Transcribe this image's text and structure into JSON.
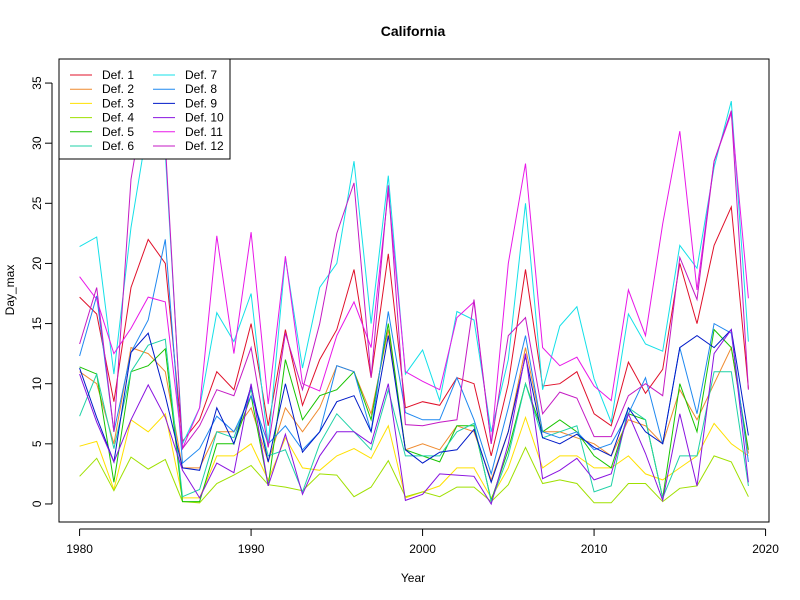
{
  "chart_data": {
    "type": "line",
    "title": "California",
    "xlabel": "Year",
    "ylabel": "Day_max",
    "xlim": [
      1978.8,
      2020.2
    ],
    "ylim": [
      -1.5,
      37
    ],
    "x_ticks": [
      1980,
      1990,
      2000,
      2010,
      2020
    ],
    "y_ticks": [
      0,
      5,
      10,
      15,
      20,
      25,
      30,
      35
    ],
    "legend_position": "top-left",
    "legend_columns": 2,
    "x": [
      1980,
      1981,
      1982,
      1983,
      1984,
      1985,
      1986,
      1987,
      1988,
      1989,
      1990,
      1991,
      1992,
      1993,
      1994,
      1995,
      1996,
      1997,
      1998,
      1999,
      2000,
      2001,
      2002,
      2003,
      2004,
      2005,
      2006,
      2007,
      2008,
      2009,
      2010,
      2011,
      2012,
      2013,
      2014,
      2015,
      2016,
      2017,
      2018,
      2019
    ],
    "series": [
      {
        "name": "Def. 1",
        "color": "#e0102a",
        "values": [
          17.2,
          15.8,
          8.5,
          18,
          22,
          20,
          5.2,
          7,
          11,
          9.5,
          15,
          6.5,
          14.5,
          8.2,
          12,
          14.5,
          19.5,
          10.5,
          20.8,
          8,
          8.5,
          8.2,
          10.5,
          10,
          4,
          10,
          19.5,
          9.8,
          10,
          11,
          7.5,
          6.5,
          11.8,
          9.2,
          11.2,
          20,
          15,
          21.5,
          24.7,
          9.6
        ]
      },
      {
        "name": "Def. 2",
        "color": "#ef8a2e",
        "values": [
          11,
          10,
          5,
          13,
          12.5,
          11,
          3,
          3,
          6,
          6,
          8,
          3.5,
          8,
          6,
          8,
          11.5,
          11,
          7.5,
          14.5,
          4.5,
          5,
          4.5,
          6.5,
          6,
          2,
          6,
          13,
          6,
          6,
          5.5,
          5,
          4,
          7,
          6.5,
          5,
          9.5,
          7,
          10,
          13,
          4.2
        ]
      },
      {
        "name": "Def. 3",
        "color": "#ffe000",
        "values": [
          4.8,
          5.2,
          1.2,
          7,
          6,
          7.5,
          0.5,
          0.5,
          4,
          4,
          5,
          2,
          5.5,
          3,
          2.8,
          4,
          4.6,
          3.8,
          6.5,
          0.5,
          1,
          1.5,
          3,
          3,
          0.5,
          3,
          7.2,
          3,
          4,
          4,
          3,
          3,
          4,
          2.5,
          2,
          3,
          4,
          6.7,
          5,
          4
        ]
      },
      {
        "name": "Def. 4",
        "color": "#9fe000",
        "values": [
          2.3,
          3.8,
          1.1,
          3.9,
          2.9,
          3.7,
          0.2,
          0.1,
          1.7,
          2.4,
          3.2,
          1.6,
          1.4,
          1.1,
          2.5,
          2.4,
          0.6,
          1.4,
          3.6,
          0.6,
          1,
          0.6,
          1.4,
          1.4,
          0.2,
          1.6,
          4.7,
          1.7,
          2,
          1.7,
          0.1,
          0.1,
          1.7,
          1.7,
          0.2,
          1.3,
          1.5,
          4,
          3.5,
          0.6
        ]
      },
      {
        "name": "Def. 5",
        "color": "#17c400",
        "values": [
          11.4,
          10.8,
          1.8,
          11,
          11.5,
          12.9,
          0.2,
          0.2,
          5,
          5,
          9,
          1.5,
          12,
          7,
          9,
          9.5,
          11,
          7,
          15,
          4.5,
          4,
          3.5,
          6.5,
          6.5,
          0.3,
          4.5,
          10,
          6,
          7,
          6,
          4,
          3,
          7.5,
          7,
          0.5,
          10,
          6,
          14.5,
          13,
          4.5
        ]
      },
      {
        "name": "Def. 6",
        "color": "#1fd2a7",
        "values": [
          7.3,
          10.8,
          4.6,
          11,
          13.2,
          13.7,
          0.6,
          1.2,
          6,
          5.5,
          9.5,
          4,
          4.5,
          1,
          5,
          7.5,
          6,
          4.5,
          9.5,
          4,
          4,
          4,
          6,
          6.7,
          0.2,
          4,
          10,
          5.5,
          6,
          6.5,
          1,
          1.5,
          8,
          7,
          0.5,
          4,
          4,
          11,
          11,
          1.5
        ]
      },
      {
        "name": "Def. 7",
        "color": "#14e0e8",
        "values": [
          21.4,
          22.2,
          10.8,
          23,
          31.7,
          29.2,
          5,
          8,
          15.9,
          13.5,
          17.5,
          4.9,
          20.5,
          11.3,
          18,
          20,
          28.5,
          15,
          27.3,
          10.8,
          12.8,
          8.6,
          16,
          15.3,
          6,
          12,
          25,
          9.5,
          14.8,
          16.4,
          10.4,
          6.8,
          15.8,
          13.3,
          12.7,
          21.5,
          19.6,
          28,
          33.5,
          13.5
        ]
      },
      {
        "name": "Def. 8",
        "color": "#1f88f0",
        "values": [
          12.3,
          17.3,
          6,
          12.6,
          15.3,
          22,
          3.4,
          4.6,
          7.3,
          6,
          9,
          5,
          6.5,
          4.5,
          6,
          11.5,
          11,
          6,
          16,
          7.6,
          7,
          7,
          10.5,
          7,
          2.5,
          8,
          14,
          6,
          5.5,
          6,
          4.5,
          5,
          7.5,
          10.5,
          5,
          13,
          7.5,
          15,
          14.2,
          3.5
        ]
      },
      {
        "name": "Def. 9",
        "color": "#001ac8",
        "values": [
          11.3,
          7.2,
          3.5,
          12.6,
          14.2,
          9,
          3,
          2.8,
          8,
          5,
          9.8,
          3.5,
          10,
          4.3,
          6,
          8.5,
          9,
          6,
          14,
          4.5,
          3.4,
          4.3,
          4.5,
          6.2,
          1.8,
          6,
          12.3,
          5.5,
          5,
          5.8,
          4.7,
          4,
          8,
          6,
          5,
          13,
          14,
          13,
          14.5,
          5.7
        ]
      },
      {
        "name": "Def. 10",
        "color": "#8a14e0",
        "values": [
          10.8,
          6.8,
          3.5,
          7,
          9.9,
          7.2,
          2.8,
          0.5,
          3.4,
          2.6,
          10,
          1.5,
          5.8,
          0.8,
          4,
          6,
          6,
          5,
          10,
          0.3,
          0.8,
          2.5,
          2.4,
          2.3,
          0,
          5,
          12.5,
          2.1,
          2.8,
          3.8,
          2,
          2.5,
          7.5,
          4.2,
          0.3,
          7.5,
          1.5,
          12.5,
          14.5,
          1.8
        ]
      },
      {
        "name": "Def. 11",
        "color": "#e818e8",
        "values": [
          18.9,
          17,
          12.5,
          14.6,
          17.2,
          16.8,
          4.6,
          8,
          22.3,
          12.5,
          22.6,
          8.3,
          20.6,
          10,
          9.4,
          14,
          16.8,
          13,
          26,
          11,
          10.2,
          9.5,
          15.5,
          16.8,
          5,
          20,
          28.3,
          13,
          11.5,
          12.2,
          9.8,
          8.6,
          17.8,
          14,
          23.3,
          31,
          17.8,
          28.5,
          32.5,
          17.1
        ]
      },
      {
        "name": "Def. 12",
        "color": "#c41ac4",
        "values": [
          13.3,
          18,
          6,
          27,
          35.5,
          30,
          4.6,
          6.5,
          9.5,
          9,
          13,
          4.7,
          14.2,
          9.5,
          15,
          22.5,
          26.7,
          10.5,
          26.5,
          6.6,
          6.5,
          6.8,
          7,
          17,
          5,
          14,
          15.5,
          7.5,
          9.3,
          8.8,
          5.6,
          5.6,
          9,
          10,
          9,
          20.5,
          17,
          28.5,
          32.7,
          9.5
        ]
      }
    ]
  }
}
